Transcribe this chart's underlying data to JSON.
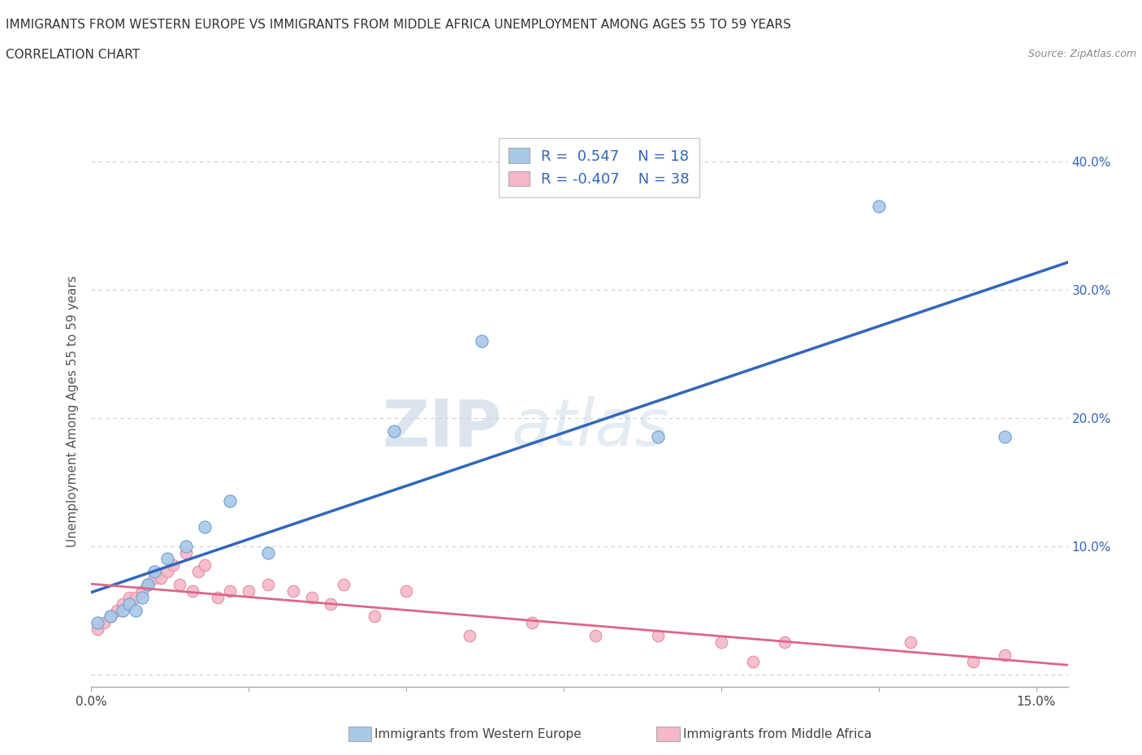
{
  "title_line1": "IMMIGRANTS FROM WESTERN EUROPE VS IMMIGRANTS FROM MIDDLE AFRICA UNEMPLOYMENT AMONG AGES 55 TO 59 YEARS",
  "title_line2": "CORRELATION CHART",
  "source": "Source: ZipAtlas.com",
  "ylabel": "Unemployment Among Ages 55 to 59 years",
  "watermark_zip": "ZIP",
  "watermark_atlas": "atlas",
  "legend_label1": "Immigrants from Western Europe",
  "legend_label2": "Immigrants from Middle Africa",
  "R1": 0.547,
  "N1": 18,
  "R2": -0.407,
  "N2": 38,
  "color_blue": "#a8c8e8",
  "color_blue_line": "#3366bb",
  "color_blue_edge": "#6699cc",
  "color_pink": "#f4b8c8",
  "color_pink_line": "#dd6688",
  "color_pink_edge": "#dd8899",
  "xlim": [
    0.0,
    0.155
  ],
  "ylim": [
    -0.01,
    0.42
  ],
  "xticks": [
    0.0,
    0.025,
    0.05,
    0.075,
    0.1,
    0.125,
    0.15
  ],
  "yticks_right": [
    0.0,
    0.1,
    0.2,
    0.3,
    0.4
  ],
  "ytick_labels_right": [
    "",
    "10.0%",
    "20.0%",
    "30.0%",
    "40.0%"
  ],
  "blue_x": [
    0.001,
    0.003,
    0.005,
    0.006,
    0.007,
    0.008,
    0.009,
    0.01,
    0.012,
    0.015,
    0.018,
    0.022,
    0.028,
    0.048,
    0.062,
    0.09,
    0.125,
    0.145
  ],
  "blue_y": [
    0.04,
    0.045,
    0.05,
    0.055,
    0.05,
    0.06,
    0.07,
    0.08,
    0.09,
    0.1,
    0.115,
    0.135,
    0.095,
    0.19,
    0.26,
    0.185,
    0.365,
    0.185
  ],
  "pink_x": [
    0.001,
    0.002,
    0.003,
    0.004,
    0.005,
    0.006,
    0.007,
    0.008,
    0.009,
    0.01,
    0.011,
    0.012,
    0.013,
    0.014,
    0.015,
    0.016,
    0.017,
    0.018,
    0.02,
    0.022,
    0.025,
    0.028,
    0.032,
    0.035,
    0.038,
    0.04,
    0.045,
    0.05,
    0.06,
    0.07,
    0.08,
    0.09,
    0.1,
    0.105,
    0.11,
    0.13,
    0.14,
    0.145
  ],
  "pink_y": [
    0.035,
    0.04,
    0.045,
    0.05,
    0.055,
    0.06,
    0.06,
    0.065,
    0.07,
    0.075,
    0.075,
    0.08,
    0.085,
    0.07,
    0.095,
    0.065,
    0.08,
    0.085,
    0.06,
    0.065,
    0.065,
    0.07,
    0.065,
    0.06,
    0.055,
    0.07,
    0.045,
    0.065,
    0.03,
    0.04,
    0.03,
    0.03,
    0.025,
    0.01,
    0.025,
    0.025,
    0.01,
    0.015
  ]
}
